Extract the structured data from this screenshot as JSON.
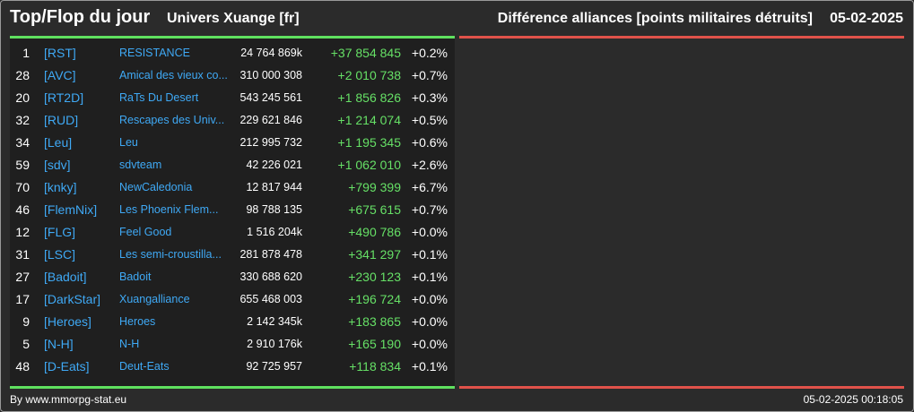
{
  "header": {
    "title": "Top/Flop du jour",
    "universe": "Univers Xuange [fr]",
    "stat_title": "Différence alliances [points militaires détruits]",
    "date": "05-02-2025"
  },
  "colors": {
    "top_accent": "#5fe05f",
    "flop_accent": "#e0524a",
    "tag_color": "#3fa9f5",
    "positive_color": "#66e066"
  },
  "top": [
    {
      "rank": "1",
      "tag": "[RST]",
      "name": "RESISTANCE",
      "points": "24 764 869k",
      "diff": "+37 854 845",
      "pct": "+0.2%"
    },
    {
      "rank": "28",
      "tag": "[AVC]",
      "name": "Amical des vieux co...",
      "points": "310 000 308",
      "diff": "+2 010 738",
      "pct": "+0.7%"
    },
    {
      "rank": "20",
      "tag": "[RT2D]",
      "name": "RaTs Du Desert",
      "points": "543 245 561",
      "diff": "+1 856 826",
      "pct": "+0.3%"
    },
    {
      "rank": "32",
      "tag": "[RUD]",
      "name": "Rescapes des Univ...",
      "points": "229 621 846",
      "diff": "+1 214 074",
      "pct": "+0.5%"
    },
    {
      "rank": "34",
      "tag": "[Leu]",
      "name": "Leu",
      "points": "212 995 732",
      "diff": "+1 195 345",
      "pct": "+0.6%"
    },
    {
      "rank": "59",
      "tag": "[sdv]",
      "name": "sdvteam",
      "points": "42 226 021",
      "diff": "+1 062 010",
      "pct": "+2.6%"
    },
    {
      "rank": "70",
      "tag": "[knky]",
      "name": "NewCaledonia",
      "points": "12 817 944",
      "diff": "+799 399",
      "pct": "+6.7%"
    },
    {
      "rank": "46",
      "tag": "[FlemNix]",
      "name": "Les Phoenix Flem...",
      "points": "98 788 135",
      "diff": "+675 615",
      "pct": "+0.7%"
    },
    {
      "rank": "12",
      "tag": "[FLG]",
      "name": "Feel Good",
      "points": "1 516 204k",
      "diff": "+490 786",
      "pct": "+0.0%"
    },
    {
      "rank": "31",
      "tag": "[LSC]",
      "name": "Les semi-croustilla...",
      "points": "281 878 478",
      "diff": "+341 297",
      "pct": "+0.1%"
    },
    {
      "rank": "27",
      "tag": "[Badoit]",
      "name": "Badoit",
      "points": "330 688 620",
      "diff": "+230 123",
      "pct": "+0.1%"
    },
    {
      "rank": "17",
      "tag": "[DarkStar]",
      "name": "Xuangalliance",
      "points": "655 468 003",
      "diff": "+196 724",
      "pct": "+0.0%"
    },
    {
      "rank": "9",
      "tag": "[Heroes]",
      "name": "Heroes",
      "points": "2 142 345k",
      "diff": "+183 865",
      "pct": "+0.0%"
    },
    {
      "rank": "5",
      "tag": "[N-H]",
      "name": "N-H",
      "points": "2 910 176k",
      "diff": "+165 190",
      "pct": "+0.0%"
    },
    {
      "rank": "48",
      "tag": "[D-Eats]",
      "name": "Deut-Eats",
      "points": "92 725 957",
      "diff": "+118 834",
      "pct": "+0.1%"
    }
  ],
  "flop": [],
  "footer": {
    "credit": "By www.mmorpg-stat.eu",
    "timestamp": "05-02-2025 00:18:05"
  }
}
